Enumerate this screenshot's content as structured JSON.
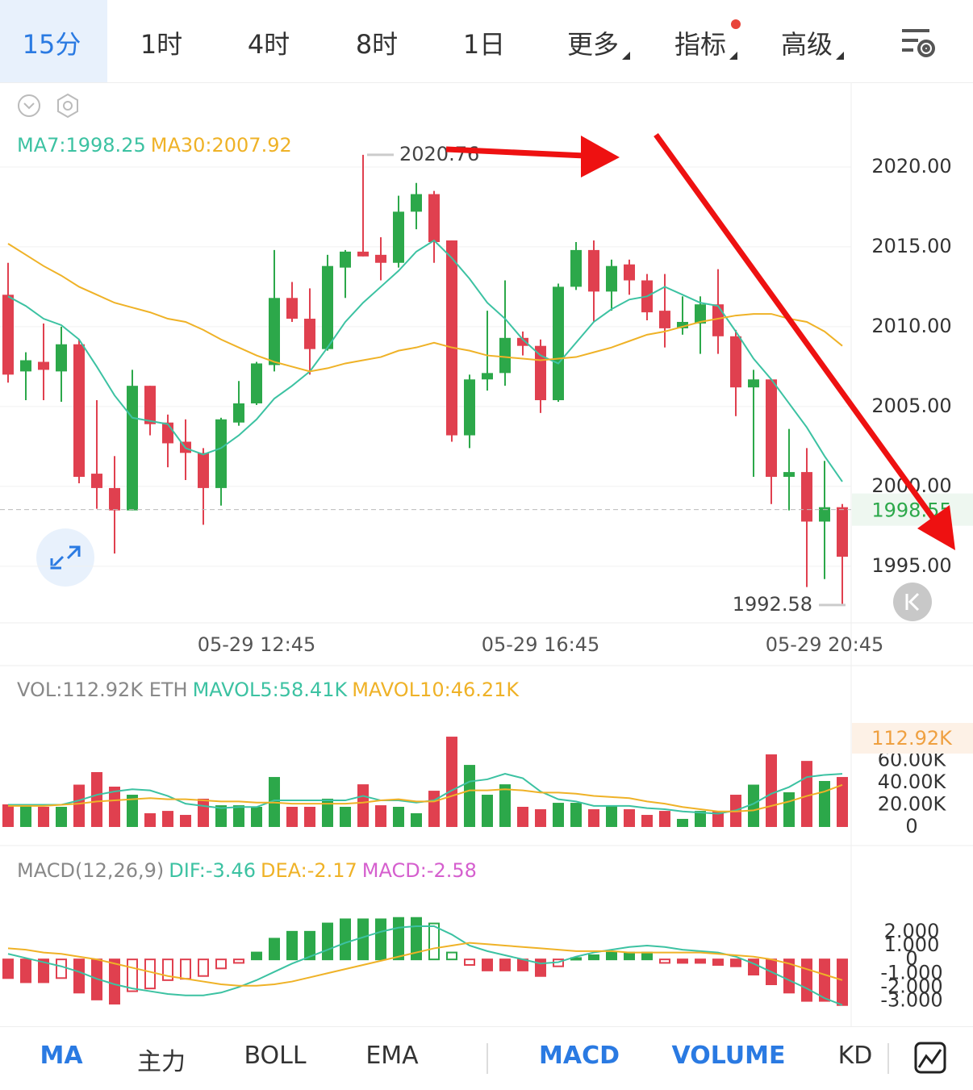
{
  "tabs": [
    {
      "label": "15分",
      "active": true
    },
    {
      "label": "1时"
    },
    {
      "label": "4时"
    },
    {
      "label": "8时"
    },
    {
      "label": "1日"
    },
    {
      "label": "更多",
      "menu": true
    },
    {
      "label": "指标",
      "menu": true,
      "badge": true
    },
    {
      "label": "高级",
      "menu": true
    }
  ],
  "indicator_tabs": [
    {
      "label": "MA",
      "active": true
    },
    {
      "label": "主力"
    },
    {
      "label": "BOLL"
    },
    {
      "label": "EMA"
    },
    {
      "label": "MACD",
      "active": true
    },
    {
      "label": "VOLUME",
      "active": true
    },
    {
      "label": "KD"
    }
  ],
  "chart_data": [
    {
      "type": "candlestick",
      "up_color": "#2ca84a",
      "down_color": "#e0404f",
      "categories": [
        null,
        null,
        null,
        null,
        null,
        null,
        null,
        null,
        null,
        null,
        null,
        null,
        null,
        null,
        "05-29 12:45",
        null,
        null,
        null,
        null,
        null,
        null,
        null,
        null,
        null,
        null,
        null,
        null,
        null,
        null,
        null,
        "05-29 16:45",
        null,
        null,
        null,
        null,
        null,
        null,
        null,
        null,
        null,
        null,
        null,
        null,
        null,
        null,
        null,
        "05-29 20:45",
        null
      ],
      "open": [
        2012.0,
        2007.2,
        2007.8,
        2007.2,
        2008.9,
        2000.8,
        1999.9,
        1998.5,
        2006.3,
        2004.0,
        2002.8,
        2002.1,
        1999.9,
        2004.0,
        2005.2,
        2007.6,
        2011.8,
        2010.5,
        2008.6,
        2013.7,
        2014.7,
        2014.5,
        2014.0,
        2017.2,
        2018.3,
        2015.4,
        2003.2,
        2006.7,
        2007.1,
        2009.3,
        2008.8,
        2005.4,
        2012.5,
        2014.8,
        2012.2,
        2013.9,
        2012.9,
        2011.0,
        2009.9,
        2010.2,
        2011.4,
        2009.4,
        2006.2,
        2006.7,
        2000.6,
        2000.9,
        1997.8,
        1998.7
      ],
      "high": [
        2014.0,
        2008.4,
        2010.2,
        2010.0,
        2009.2,
        2005.4,
        2001.9,
        2007.3,
        2006.3,
        2004.5,
        2004.2,
        2002.4,
        2004.3,
        2006.6,
        2007.8,
        2014.8,
        2012.8,
        2012.4,
        2014.5,
        2014.8,
        2020.76,
        2015.6,
        2018.2,
        2019.0,
        2018.5,
        2015.4,
        2007.0,
        2011.0,
        2012.9,
        2009.7,
        2009.2,
        2012.7,
        2015.3,
        2015.4,
        2014.2,
        2014.2,
        2013.3,
        2013.3,
        2011.9,
        2011.9,
        2013.6,
        2009.8,
        2007.3,
        2006.7,
        2003.6,
        2002.4,
        2001.6,
        1998.9
      ],
      "low": [
        2006.5,
        2005.4,
        2005.4,
        2005.3,
        2000.2,
        1998.6,
        1995.8,
        1998.5,
        2003.2,
        2001.2,
        2000.4,
        1997.6,
        1998.8,
        2003.8,
        2005.1,
        2007.2,
        2010.3,
        2007.0,
        2008.5,
        2011.8,
        2014.4,
        2012.9,
        2013.7,
        2016.1,
        2014.0,
        2002.8,
        2002.4,
        2006.0,
        2006.3,
        2008.2,
        2004.6,
        2005.3,
        2012.3,
        2010.3,
        2011.0,
        2012.0,
        2010.4,
        2008.7,
        2009.5,
        2008.3,
        2008.3,
        2004.4,
        2000.6,
        1998.9,
        1998.5,
        1993.7,
        1994.2,
        1992.58
      ],
      "close": [
        2007.0,
        2007.9,
        2007.3,
        2008.9,
        2000.6,
        1999.9,
        1998.5,
        2006.3,
        2003.9,
        2002.7,
        2002.1,
        1999.9,
        2004.2,
        2005.2,
        2007.7,
        2011.8,
        2010.5,
        2008.6,
        2013.8,
        2014.7,
        2014.4,
        2014.0,
        2017.2,
        2018.3,
        2015.3,
        2003.2,
        2006.7,
        2007.1,
        2009.3,
        2008.8,
        2005.4,
        2012.5,
        2014.8,
        2012.2,
        2013.8,
        2012.9,
        2010.9,
        2009.9,
        2010.3,
        2011.4,
        2009.4,
        2006.2,
        2006.7,
        2000.6,
        2000.9,
        1997.8,
        1998.7,
        1995.6
      ],
      "lines": [
        {
          "name": "MA7:1998.25",
          "color": "#3cc2a2",
          "values": [
            2011.9,
            2011.3,
            2010.5,
            2010.1,
            2009.2,
            2007.5,
            2005.7,
            2004.3,
            2004.1,
            2003.9,
            2002.4,
            2002.0,
            2002.4,
            2003.2,
            2004.2,
            2005.5,
            2006.3,
            2007.2,
            2008.7,
            2010.3,
            2011.5,
            2012.5,
            2013.5,
            2014.7,
            2015.4,
            2014.3,
            2013.0,
            2011.5,
            2010.5,
            2009.2,
            2008.2,
            2007.7,
            2009.0,
            2010.3,
            2011.1,
            2011.7,
            2011.9,
            2012.5,
            2012.0,
            2011.5,
            2011.3,
            2009.7,
            2008.0,
            2006.7,
            2005.2,
            2003.7,
            2001.9,
            2000.3
          ]
        },
        {
          "name": "MA30:2007.92",
          "color": "#efb227",
          "values": [
            2015.2,
            2014.5,
            2013.8,
            2013.2,
            2012.5,
            2012.0,
            2011.5,
            2011.2,
            2010.9,
            2010.5,
            2010.3,
            2009.8,
            2009.2,
            2008.7,
            2008.2,
            2007.8,
            2007.5,
            2007.2,
            2007.4,
            2007.7,
            2007.9,
            2008.1,
            2008.5,
            2008.7,
            2009.0,
            2008.7,
            2008.5,
            2008.2,
            2008.1,
            2008.0,
            2007.9,
            2008.0,
            2008.1,
            2008.4,
            2008.7,
            2009.1,
            2009.5,
            2009.7,
            2010.0,
            2010.3,
            2010.5,
            2010.7,
            2010.8,
            2010.8,
            2010.5,
            2010.3,
            2009.7,
            2008.8
          ]
        }
      ],
      "ylim": [
        1991.46,
        2025.25
      ],
      "yticks": [
        {
          "value": 1995,
          "label": "1995.00"
        },
        {
          "value": 2000,
          "label": "2000.00"
        },
        {
          "value": 2005,
          "label": "2005.00"
        },
        {
          "value": 2010,
          "label": "2010.00"
        },
        {
          "value": 2015,
          "label": "2015.00"
        },
        {
          "value": 2020,
          "label": "2020.00"
        }
      ],
      "last_price": 1998.55,
      "max_label": 2020.76,
      "min_label": 1992.58
    },
    {
      "type": "volume",
      "title": "VOL:112.92K ETH",
      "current_label": "112.92K",
      "up_color": "#2ca84a",
      "down_color": "#e0404f",
      "values": [
        20.4,
        20.4,
        18.2,
        18.2,
        38.2,
        49.5,
        36.4,
        29.1,
        12.4,
        14.5,
        10.9,
        25.5,
        19.6,
        19.6,
        18.2,
        45.1,
        18.2,
        18.2,
        25.5,
        18.2,
        38.5,
        19.6,
        18.2,
        12.4,
        32.7,
        81.5,
        56.0,
        29.1,
        38.5,
        18.2,
        16.0,
        21.8,
        21.8,
        16.0,
        19.6,
        16.0,
        10.9,
        14.5,
        7.3,
        14.5,
        14.5,
        29.1,
        38.2,
        65.5,
        31.3,
        59.6,
        41.5,
        45.1
      ],
      "lines": [
        {
          "name": "MAVOL5:58.41K",
          "color": "#3cc2a2",
          "values": [
            20,
            20,
            20,
            20,
            24,
            29,
            32,
            34,
            33,
            28,
            21,
            19,
            17,
            18,
            18,
            24,
            24,
            24,
            24,
            24,
            28,
            24,
            24,
            22,
            24,
            33,
            41,
            43,
            48,
            44,
            32,
            25,
            23,
            19,
            19,
            19,
            17,
            16,
            14,
            13,
            12,
            15,
            21,
            30,
            36,
            45,
            47,
            48
          ]
        },
        {
          "name": "MAVOL10:46.21K",
          "color": "#efb227",
          "values": [
            19,
            19,
            19,
            20,
            21,
            23,
            24,
            25,
            26,
            25,
            25,
            24,
            23,
            23,
            22,
            22,
            21,
            21,
            21,
            21,
            22,
            24,
            25,
            23,
            23,
            28,
            33,
            33,
            34,
            33,
            31,
            31,
            30,
            28,
            27,
            26,
            23,
            21,
            18,
            16,
            14,
            14,
            15,
            19,
            23,
            28,
            32,
            38
          ]
        }
      ],
      "ylim": [
        0,
        91
      ],
      "yticks": [
        0,
        {
          "value": 20,
          "label": "20.00K"
        },
        {
          "value": 40,
          "label": "40.00K"
        },
        {
          "value": 60,
          "label": "60.00K"
        }
      ]
    },
    {
      "type": "macd",
      "title": "MACD(12,26,9)",
      "name": "MACD:-2.58",
      "color": "#d55fce",
      "up_color": "#2ca84a",
      "down_color": "#e0404f",
      "values": [
        -1.35,
        -1.65,
        -1.65,
        -1.35,
        -2.4,
        -2.9,
        -3.2,
        -2.3,
        -2.1,
        -1.5,
        -1.4,
        -1.2,
        -0.65,
        -0.25,
        0.5,
        1.5,
        2.0,
        2.0,
        2.6,
        2.9,
        2.9,
        2.9,
        3.0,
        3.0,
        2.6,
        0.5,
        -0.4,
        -0.8,
        -0.8,
        -0.8,
        -1.2,
        -0.5,
        0.1,
        0.3,
        0.5,
        0.5,
        0.5,
        -0.25,
        -0.25,
        -0.25,
        -0.4,
        -0.5,
        -1.1,
        -1.8,
        -2.4,
        -3.0,
        -3.0,
        -3.3
      ],
      "lines": [
        {
          "name": "DIF:-3.46",
          "color": "#3cc2a2",
          "values": [
            0.4,
            0.1,
            -0.2,
            -0.5,
            -0.9,
            -1.4,
            -1.8,
            -2.1,
            -2.3,
            -2.5,
            -2.6,
            -2.6,
            -2.4,
            -2.0,
            -1.5,
            -0.9,
            -0.3,
            0.2,
            0.7,
            1.2,
            1.6,
            2.0,
            2.3,
            2.4,
            2.4,
            1.8,
            1.0,
            0.6,
            0.3,
            0.0,
            -0.3,
            -0.2,
            0.2,
            0.5,
            0.7,
            0.9,
            1.0,
            0.9,
            0.7,
            0.6,
            0.5,
            0.2,
            -0.3,
            -0.9,
            -1.5,
            -2.1,
            -2.8,
            -3.3
          ]
        },
        {
          "name": "DEA:-2.17",
          "color": "#efb227",
          "values": [
            0.8,
            0.7,
            0.5,
            0.4,
            0.2,
            0.0,
            -0.3,
            -0.6,
            -0.9,
            -1.2,
            -1.4,
            -1.6,
            -1.8,
            -1.9,
            -1.9,
            -1.8,
            -1.6,
            -1.3,
            -1.0,
            -0.7,
            -0.4,
            -0.1,
            0.2,
            0.5,
            0.8,
            1.0,
            1.2,
            1.1,
            1.0,
            0.9,
            0.8,
            0.7,
            0.6,
            0.6,
            0.6,
            0.5,
            0.5,
            0.5,
            0.5,
            0.5,
            0.4,
            0.3,
            0.2,
            0.0,
            -0.3,
            -0.7,
            -1.1,
            -1.5
          ]
        }
      ],
      "ylim": [
        -4.6,
        5.2
      ],
      "yticks": [
        {
          "value": 2,
          "label": "2.000"
        },
        {
          "value": 1,
          "label": "1.000"
        },
        0,
        {
          "value": -1,
          "label": "-1.000"
        },
        {
          "value": -2,
          "label": "-2.000"
        },
        {
          "value": -3,
          "label": "-3.000"
        }
      ]
    }
  ]
}
